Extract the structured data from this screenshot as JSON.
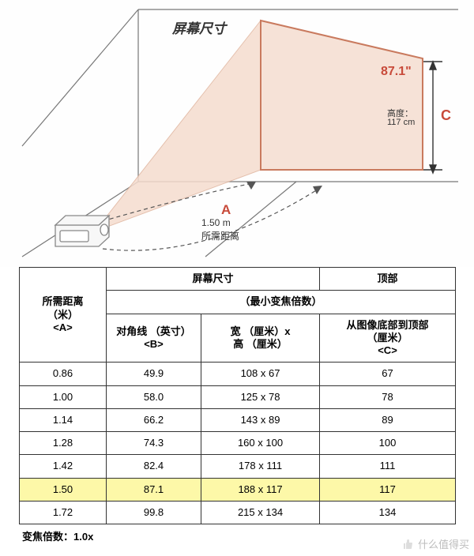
{
  "diagram": {
    "type": "infographic",
    "screen_label": "屏幕尺寸",
    "diagonal_value": "87.1\"",
    "height_label": "高度：",
    "height_value": "117 cm",
    "C_label": "C",
    "A_label": "A",
    "distance_value": "1.50 m",
    "distance_label": "所需距离",
    "colors": {
      "room_line": "#777777",
      "cone_fill": "#f5dccf",
      "cone_stroke": "#e0b59e",
      "screen_border": "#c97a5e",
      "red_text": "#c84a3a",
      "projector_fill": "#f0f0f0",
      "projector_stroke": "#888888",
      "dashed": "#555555",
      "arrow": "#333333"
    }
  },
  "table": {
    "type": "table",
    "highlight_color": "#fdf8a8",
    "border_color": "#333333",
    "header": {
      "distance": "所需距离\n（米）\n<A>",
      "screen_size": "屏幕尺寸",
      "top": "顶部",
      "min_zoom": "（最小变焦倍数）",
      "diagonal": "对角线 （英寸）\n<B>",
      "wxh": "宽 （厘米）x\n高 （厘米）",
      "image_height": "从图像底部到顶部\n（厘米）\n<C>"
    },
    "columns_width": [
      "110px",
      "120px",
      "150px",
      "172px"
    ],
    "rows": [
      {
        "d": "0.86",
        "diag": "49.9",
        "wh": "108 x 67",
        "h": "67",
        "hl": false
      },
      {
        "d": "1.00",
        "diag": "58.0",
        "wh": "125 x 78",
        "h": "78",
        "hl": false
      },
      {
        "d": "1.14",
        "diag": "66.2",
        "wh": "143 x 89",
        "h": "89",
        "hl": false
      },
      {
        "d": "1.28",
        "diag": "74.3",
        "wh": "160 x 100",
        "h": "100",
        "hl": false
      },
      {
        "d": "1.42",
        "diag": "82.4",
        "wh": "178 x 111",
        "h": "111",
        "hl": false
      },
      {
        "d": "1.50",
        "diag": "87.1",
        "wh": "188 x 117",
        "h": "117",
        "hl": true
      },
      {
        "d": "1.72",
        "diag": "99.8",
        "wh": "215 x 134",
        "h": "134",
        "hl": false
      }
    ],
    "zoom_note": "变焦倍数：1.0x"
  },
  "watermark": "什么值得买"
}
